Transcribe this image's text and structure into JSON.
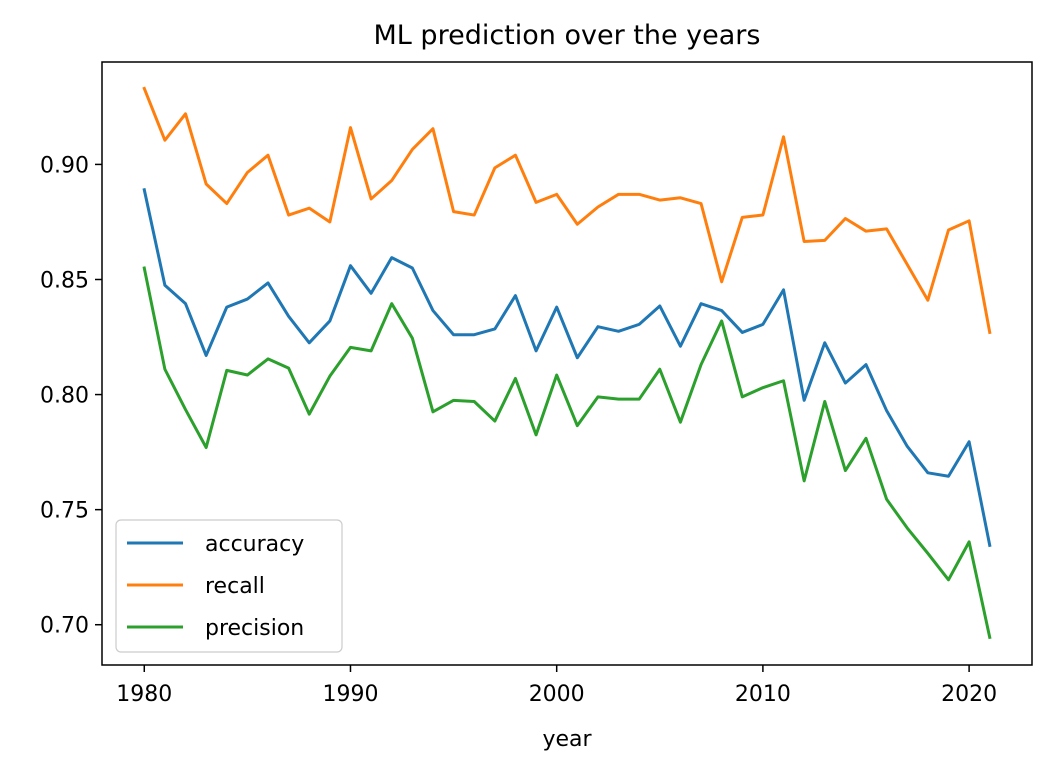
{
  "chart_data": {
    "type": "line",
    "title": "ML prediction over the years",
    "xlabel": "year",
    "ylabel": "",
    "xlim": [
      1977.95,
      2023.05
    ],
    "ylim": [
      0.6825,
      0.9445
    ],
    "xticks": [
      1980,
      1990,
      2000,
      2010,
      2020
    ],
    "yticks": [
      0.7,
      0.75,
      0.8,
      0.85,
      0.9
    ],
    "ytick_labels": [
      "0.70",
      "0.75",
      "0.80",
      "0.85",
      "0.90"
    ],
    "legend_position": "lower-left",
    "grid": false,
    "x": [
      1980,
      1981,
      1982,
      1983,
      1984,
      1985,
      1986,
      1987,
      1988,
      1989,
      1990,
      1991,
      1992,
      1993,
      1994,
      1995,
      1996,
      1997,
      1998,
      1999,
      2000,
      2001,
      2002,
      2003,
      2004,
      2005,
      2006,
      2007,
      2008,
      2009,
      2010,
      2011,
      2012,
      2013,
      2014,
      2015,
      2016,
      2017,
      2018,
      2019,
      2020,
      2021
    ],
    "series": [
      {
        "name": "accuracy",
        "color": "#1f77b4",
        "values": [
          0.889,
          0.8475,
          0.8395,
          0.817,
          0.838,
          0.8415,
          0.8485,
          0.834,
          0.8225,
          0.832,
          0.856,
          0.844,
          0.8595,
          0.855,
          0.8365,
          0.826,
          0.826,
          0.8285,
          0.843,
          0.819,
          0.838,
          0.816,
          0.8295,
          0.8275,
          0.8305,
          0.8385,
          0.821,
          0.8395,
          0.8365,
          0.827,
          0.8305,
          0.8455,
          0.7975,
          0.8225,
          0.805,
          0.813,
          0.793,
          0.7775,
          0.766,
          0.7645,
          0.7795,
          0.7345
        ]
      },
      {
        "name": "recall",
        "color": "#ff7f0e",
        "values": [
          0.933,
          0.9105,
          0.922,
          0.8915,
          0.883,
          0.8965,
          0.904,
          0.878,
          0.881,
          0.875,
          0.916,
          0.885,
          0.893,
          0.9065,
          0.9155,
          0.8795,
          0.878,
          0.8985,
          0.904,
          0.8835,
          0.887,
          0.874,
          0.8815,
          0.887,
          0.887,
          0.8845,
          0.8855,
          0.883,
          0.849,
          0.877,
          0.878,
          0.912,
          0.8665,
          0.867,
          0.8765,
          0.871,
          0.872,
          0.8565,
          0.841,
          0.8715,
          0.8755,
          0.827
        ]
      },
      {
        "name": "precision",
        "color": "#2ca02c",
        "values": [
          0.855,
          0.811,
          0.7935,
          0.777,
          0.8105,
          0.8085,
          0.8155,
          0.8115,
          0.7915,
          0.808,
          0.8205,
          0.819,
          0.8395,
          0.8245,
          0.7925,
          0.7975,
          0.797,
          0.7885,
          0.807,
          0.7825,
          0.8085,
          0.7865,
          0.799,
          0.798,
          0.798,
          0.811,
          0.788,
          0.813,
          0.832,
          0.799,
          0.803,
          0.806,
          0.7625,
          0.797,
          0.767,
          0.781,
          0.7545,
          0.742,
          0.731,
          0.7195,
          0.736,
          0.6945
        ]
      }
    ]
  }
}
